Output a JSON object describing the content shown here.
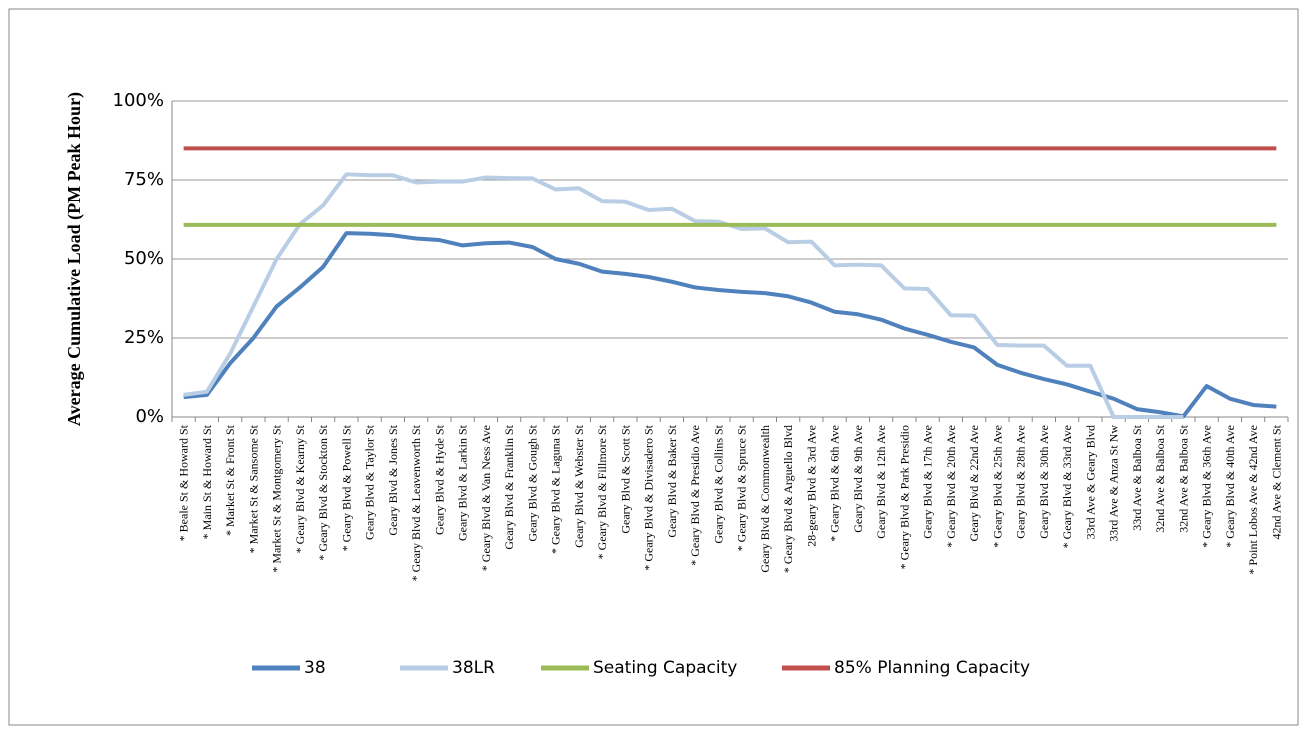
{
  "chart_data": {
    "type": "line",
    "ylabel": "Average Cumulative Load (PM Peak Hour)",
    "categories": [
      "* Beale St & Howard St",
      "* Main St  & Howard St",
      "* Market St & Front St",
      "* Market St & Sansome St",
      "* Market St & Montgomery St",
      "* Geary Blvd & Kearny St",
      "* Geary Blvd & Stockton St",
      "* Geary Blvd & Powell St",
      "Geary Blvd & Taylor St",
      "Geary Blvd & Jones St",
      "* Geary Blvd & Leavenworth St",
      "Geary Blvd & Hyde St",
      "Geary Blvd & Larkin St",
      "* Geary Blvd & Van Ness Ave",
      "Geary Blvd & Franklin St",
      "Geary Blvd & Gough St",
      "* Geary Blvd & Laguna St",
      "Geary Blvd & Webster St",
      "* Geary Blvd & Fillmore St",
      "Geary Blvd & Scott St",
      "* Geary Blvd & Divisadero St",
      "Geary Blvd & Baker St",
      "* Geary Blvd & Presidio Ave",
      "Geary Blvd & Collins St",
      "* Geary Blvd & Spruce St",
      "Geary Blvd & Commonwealth",
      "* Geary Blvd & Arguello Blvd",
      "28-geary Blvd & 3rd Ave",
      "* Geary Blvd & 6th Ave",
      "Geary Blvd & 9th Ave",
      "Geary Blvd & 12th Ave",
      "* Geary Blvd & Park Presidio",
      "Geary Blvd & 17th Ave",
      "* Geary Blvd & 20th Ave",
      "Geary Blvd & 22nd Ave",
      "* Geary Blvd & 25th Ave",
      "Geary Blvd & 28th Ave",
      "Geary Blvd & 30th Ave",
      "* Geary Blvd & 33rd Ave",
      "33rd Ave & Geary Blvd",
      "33rd Ave & Anza St Nw",
      "33rd Ave & Balboa St",
      "32nd Ave & Balboa St",
      "32nd Ave & Balboa St",
      "* Geary Blvd & 36th Ave",
      "* Geary Blvd & 40th Ave",
      "* Point Lobos Ave & 42nd Ave",
      "42nd Ave & Clement St"
    ],
    "series": [
      {
        "name": "38",
        "color": "#4f81bd",
        "width": 4,
        "values": [
          6.3,
          7,
          17,
          25,
          35,
          41,
          47.5,
          58.2,
          58,
          57.5,
          56.5,
          56,
          54.3,
          55,
          55.2,
          53.8,
          50,
          48.5,
          46,
          45.3,
          44.3,
          42.8,
          41,
          40.2,
          39.6,
          39.2,
          38.2,
          36.2,
          33.3,
          32.5,
          30.8,
          28,
          26,
          23.8,
          22,
          16.5,
          14,
          12,
          10.3,
          8,
          5.8,
          2.5,
          1.5,
          0.2,
          9.8,
          5.8,
          3.8,
          3.3
        ]
      },
      {
        "name": "38LR",
        "color": "#b9cde5",
        "width": 4,
        "values": [
          7,
          8,
          20,
          35,
          50,
          61,
          67,
          76.8,
          76.5,
          76.5,
          74.2,
          74.5,
          74.5,
          75.8,
          75.6,
          75.5,
          72,
          72.4,
          68.3,
          68.1,
          65.5,
          65.9,
          62,
          61.8,
          59.5,
          59.7,
          55.3,
          55.5,
          48,
          48.2,
          48,
          40.7,
          40.5,
          32.2,
          32.1,
          22.8,
          22.6,
          22.6,
          16.2,
          16.2,
          0,
          0,
          0,
          0,
          null,
          null,
          null,
          null
        ]
      },
      {
        "name": "Seating Capacity",
        "color": "#9bbb59",
        "width": 4,
        "values": [
          60.8,
          60.8,
          60.8,
          60.8,
          60.8,
          60.8,
          60.8,
          60.8,
          60.8,
          60.8,
          60.8,
          60.8,
          60.8,
          60.8,
          60.8,
          60.8,
          60.8,
          60.8,
          60.8,
          60.8,
          60.8,
          60.8,
          60.8,
          60.8,
          60.8,
          60.8,
          60.8,
          60.8,
          60.8,
          60.8,
          60.8,
          60.8,
          60.8,
          60.8,
          60.8,
          60.8,
          60.8,
          60.8,
          60.8,
          60.8,
          60.8,
          60.8,
          60.8,
          60.8,
          60.8,
          60.8,
          60.8,
          60.8
        ]
      },
      {
        "name": "85% Planning Capacity",
        "color": "#c0504d",
        "width": 4,
        "values": [
          85,
          85,
          85,
          85,
          85,
          85,
          85,
          85,
          85,
          85,
          85,
          85,
          85,
          85,
          85,
          85,
          85,
          85,
          85,
          85,
          85,
          85,
          85,
          85,
          85,
          85,
          85,
          85,
          85,
          85,
          85,
          85,
          85,
          85,
          85,
          85,
          85,
          85,
          85,
          85,
          85,
          85,
          85,
          85,
          85,
          85,
          85,
          85
        ]
      }
    ],
    "ylim": [
      0,
      100
    ],
    "yticks": [
      {
        "value": 0,
        "label": "0%"
      },
      {
        "value": 25,
        "label": "25%"
      },
      {
        "value": 50,
        "label": "50%"
      },
      {
        "value": 75,
        "label": "75%"
      },
      {
        "value": 100,
        "label": "100%"
      }
    ],
    "grid": true,
    "legend": "bottom"
  }
}
